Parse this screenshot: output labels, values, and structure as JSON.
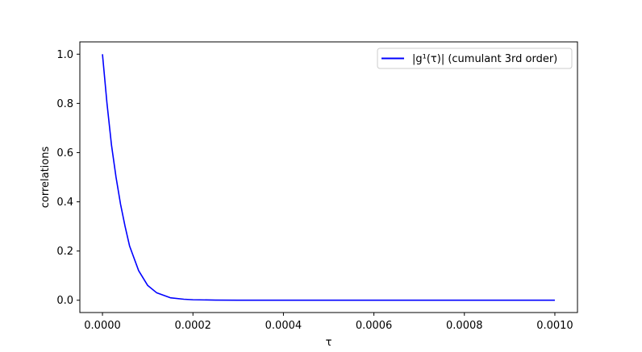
{
  "chart_data": {
    "type": "line",
    "title": "",
    "xlabel": "τ",
    "ylabel": "correlations",
    "xlim": [
      -5e-05,
      0.00105
    ],
    "ylim": [
      -0.05,
      1.05
    ],
    "xticks": [
      0.0,
      0.0002,
      0.0004,
      0.0006,
      0.0008,
      0.001
    ],
    "xtick_labels": [
      "0.0000",
      "0.0002",
      "0.0004",
      "0.0006",
      "0.0008",
      "0.0010"
    ],
    "yticks": [
      0.0,
      0.2,
      0.4,
      0.6,
      0.8,
      1.0
    ],
    "ytick_labels": [
      "0.0",
      "0.2",
      "0.4",
      "0.6",
      "0.8",
      "1.0"
    ],
    "grid": false,
    "legend_position": "top-right",
    "series": [
      {
        "name": "|g¹(τ)| (cumulant 3rd order)",
        "color": "#0000ff",
        "x": [
          0.0,
          1e-05,
          2e-05,
          3e-05,
          4e-05,
          5e-05,
          6e-05,
          8e-05,
          0.0001,
          0.00012,
          0.00015,
          0.00018,
          0.0002,
          0.00025,
          0.0003,
          0.00035,
          0.0004,
          0.0005,
          0.0006,
          0.0007,
          0.0008,
          0.0009,
          0.001
        ],
        "y": [
          1.0,
          0.8,
          0.63,
          0.5,
          0.39,
          0.3,
          0.22,
          0.12,
          0.06,
          0.03,
          0.01,
          0.004,
          0.002,
          0.0005,
          0.0001,
          0.0,
          0.0,
          0.0,
          0.0,
          0.0,
          0.0,
          0.0,
          0.0
        ]
      }
    ]
  }
}
